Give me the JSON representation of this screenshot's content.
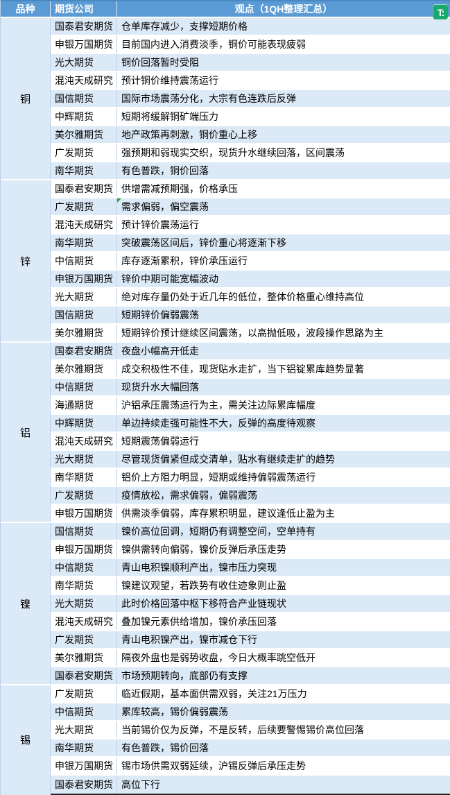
{
  "header": {
    "variety_label": "品种",
    "company_label": "期货公司",
    "view_label": "观点（1QH整理汇总）"
  },
  "badge": {
    "label": "T:"
  },
  "colors": {
    "header_bg": "#5b9bd5",
    "header_edge": "#4a88c2",
    "band_blue": "#dce9f6",
    "border_blue": "#b9cfe8",
    "comment_green": "#2e9e3f",
    "bottom_edge": "#262626",
    "badge_green": "#18a96f"
  },
  "sections": [
    {
      "variety": "铜",
      "rows": [
        {
          "company": "国泰君安期货",
          "view": "仓单库存减少，支撑短期价格"
        },
        {
          "company": "申银万国期货",
          "view": "目前国内进入消费淡季，铜价可能表现疲弱"
        },
        {
          "company": "光大期货",
          "view": "铜价回落暂时受阻"
        },
        {
          "company": "混沌天成研究",
          "view": "预计铜价维持震荡运行"
        },
        {
          "company": "国信期货",
          "view": "国际市场震荡分化，大宗有色连跌后反弹"
        },
        {
          "company": "中辉期货",
          "view": "短期将缓解铜矿端压力"
        },
        {
          "company": "美尔雅期货",
          "view": "地产政策再刺激，铜价重心上移"
        },
        {
          "company": "广发期货",
          "view": "强预期和弱现实交织，现货升水继续回落，区间震荡"
        },
        {
          "company": "南华期货",
          "view": "有色普跌，铜价回落"
        }
      ]
    },
    {
      "variety": "锌",
      "rows": [
        {
          "company": "国泰君安期货",
          "view": "供增需减预期强，价格承压"
        },
        {
          "company": "广发期货",
          "view": "需求偏弱，偏空震荡",
          "comment_marker": true
        },
        {
          "company": "混沌天成研究",
          "view": "预计锌价震荡运行"
        },
        {
          "company": "南华期货",
          "view": "突破震荡区间后，锌价重心将逐渐下移"
        },
        {
          "company": "中信期货",
          "view": "库存逐渐累积，锌价承压运行"
        },
        {
          "company": "申银万国期货",
          "view": "锌价中期可能宽幅波动"
        },
        {
          "company": "光大期货",
          "view": "绝对库存量仍处于近几年的低位，整体价格重心维持高位"
        },
        {
          "company": "国信期货",
          "view": "短期锌价偏弱震荡"
        },
        {
          "company": "美尔雅期货",
          "view": "短期锌价预计继续区间震荡，以高抛低吸，波段操作思路为主"
        }
      ]
    },
    {
      "variety": "铝",
      "rows": [
        {
          "company": "国泰君安期货",
          "view": "夜盘小幅高开低走"
        },
        {
          "company": "美尔雅期货",
          "view": "成交积极性不佳，现货贴水走扩，当下铝锭累库趋势显著"
        },
        {
          "company": "中信期货",
          "view": "现货升水大幅回落"
        },
        {
          "company": "海通期货",
          "view": "沪铝承压震荡运行为主，需关注边际累库幅度"
        },
        {
          "company": "中辉期货",
          "view": "单边持续走强可能性不大，反弹的高度待观察"
        },
        {
          "company": "混沌天成研究",
          "view": "短期震荡偏弱运行"
        },
        {
          "company": "光大期货",
          "view": "尽管现货偏紧但成交清单，贴水有继续走扩的趋势"
        },
        {
          "company": "南华期货",
          "view": "铝价上方阻力明显，短期或维持偏弱震荡运行"
        },
        {
          "company": "广发期货",
          "view": "疫情放松，需求偏弱，偏弱震荡"
        },
        {
          "company": "申银万国期货",
          "view": "供需淡季偏弱，库存累积明显，建议逢低止盈为主"
        }
      ]
    },
    {
      "variety": "镍",
      "rows": [
        {
          "company": "国信期货",
          "view": "镍价高位回调，短期仍有调整空间，空单持有"
        },
        {
          "company": "申银万国期货",
          "view": "镍供需转向偏弱，镍价反弹后承压走势"
        },
        {
          "company": "中信期货",
          "view": "青山电积镍顺利产出，镍市压力突现"
        },
        {
          "company": "南华期货",
          "view": "镍建议观望，若跌势有收住迹象则止盈"
        },
        {
          "company": "光大期货",
          "view": "此时价格回落中枢下移符合产业链现状"
        },
        {
          "company": "混沌天成研究",
          "view": "叠加镍元素供给增加，镍价承压回落"
        },
        {
          "company": "广发期货",
          "view": "青山电积镍产出，镍市减仓下行"
        },
        {
          "company": "美尔雅期货",
          "view": "隔夜外盘也是弱势收盘，今日大概率跳空低开"
        },
        {
          "company": "国泰君安期货",
          "view": "市场预期转向，底部仍有支撑"
        }
      ]
    },
    {
      "variety": "锡",
      "rows": [
        {
          "company": "广发期货",
          "view": "临近假期，基本面供需双弱，关注21万压力"
        },
        {
          "company": "中信期货",
          "view": "累库较高，锡价偏弱震荡"
        },
        {
          "company": "光大期货",
          "view": "当前锡价仅为反弹，不是反转，后续要警惕锡价高位回落"
        },
        {
          "company": "南华期货",
          "view": "有色普跌，锡价回落"
        },
        {
          "company": "申银万国期货",
          "view": "锡市场供需双弱延续，沪锡反弹后承压走势"
        },
        {
          "company": "国泰君安期货",
          "view": "高位下行"
        }
      ]
    }
  ]
}
